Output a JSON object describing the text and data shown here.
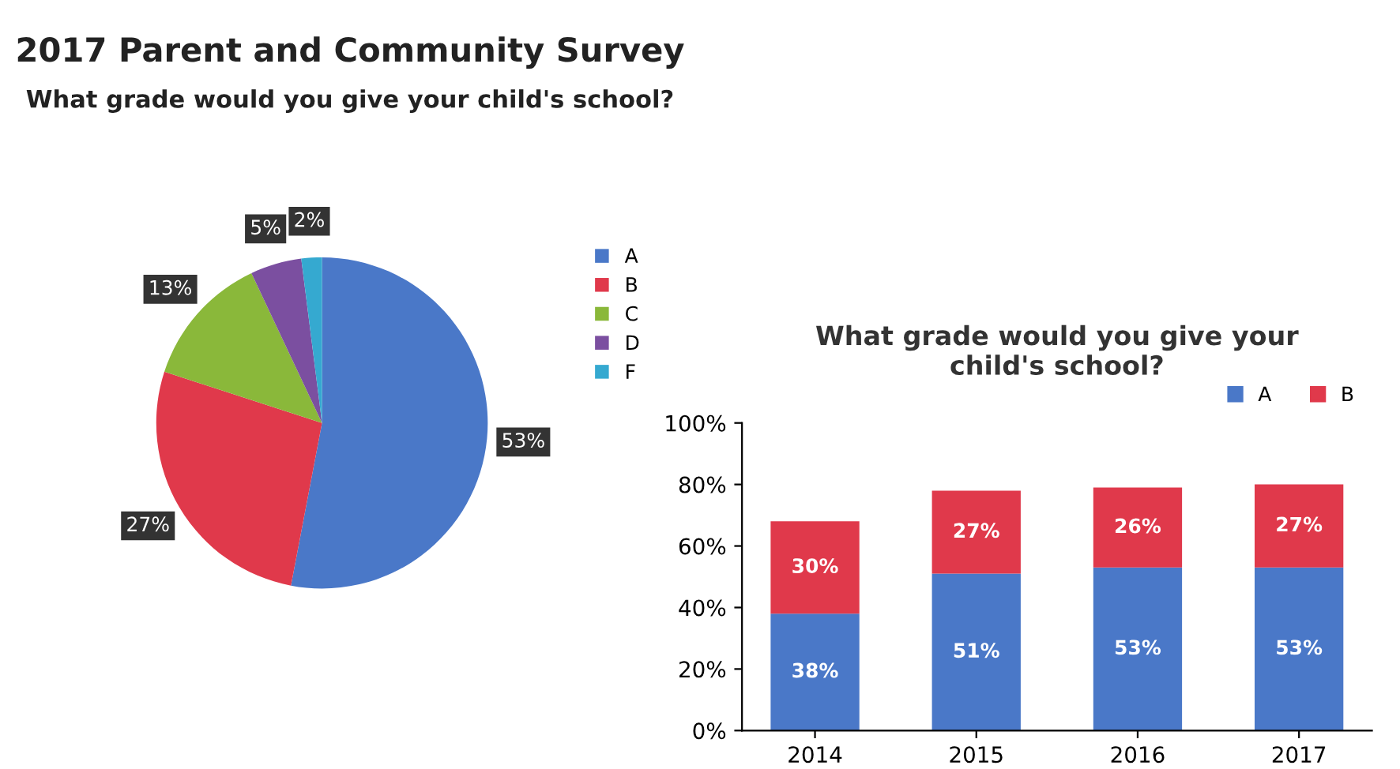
{
  "chart_data": [
    {
      "type": "pie",
      "title": "2017 Parent and Community Survey",
      "subtitle": "What grade would you give your child's school?",
      "categories": [
        "A",
        "B",
        "C",
        "D",
        "F"
      ],
      "values": [
        53,
        27,
        13,
        5,
        2
      ],
      "colors": [
        "#4a78c8",
        "#e0394b",
        "#8ab83a",
        "#7b4fa0",
        "#35a9d0"
      ],
      "value_labels": [
        "53%",
        "27%",
        "13%",
        "5%",
        "2%"
      ],
      "legend": "right"
    },
    {
      "type": "bar",
      "stacked": true,
      "title": "What grade would you give your child's school?",
      "categories": [
        "2014",
        "2015",
        "2016",
        "2017"
      ],
      "series": [
        {
          "name": "A",
          "color": "#4a78c8",
          "values": [
            38,
            51,
            53,
            53
          ],
          "value_labels": [
            "38%",
            "51%",
            "53%",
            "53%"
          ]
        },
        {
          "name": "B",
          "color": "#e0394b",
          "values": [
            30,
            27,
            26,
            27
          ],
          "value_labels": [
            "30%",
            "27%",
            "26%",
            "27%"
          ]
        }
      ],
      "ylim": [
        0,
        100
      ],
      "yticks": [
        {
          "value": 0,
          "label": "0%"
        },
        {
          "value": 20,
          "label": "20%"
        },
        {
          "value": 40,
          "label": "40%"
        },
        {
          "value": 60,
          "label": "60%"
        },
        {
          "value": 80,
          "label": "80%"
        },
        {
          "value": 100,
          "label": "100%"
        }
      ],
      "legend": "top right"
    }
  ]
}
